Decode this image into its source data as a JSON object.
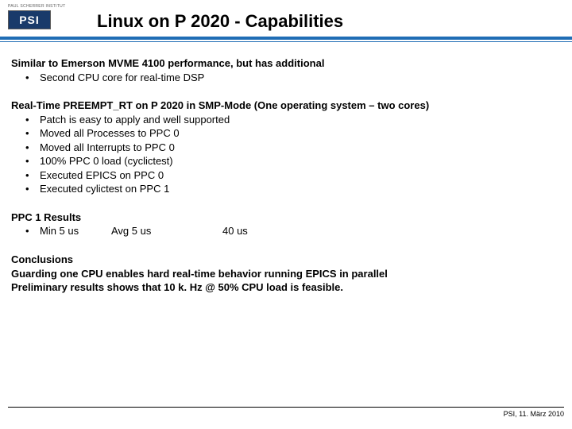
{
  "logo": {
    "topText": "PAUL SCHERRER INSTITUT",
    "blockText": "PSI"
  },
  "title": "Linux on P 2020 - Capabilities",
  "section1": {
    "heading": "Similar to Emerson MVME 4100 performance, but has additional",
    "bullets": [
      "Second CPU core for real-time DSP"
    ]
  },
  "section2": {
    "heading": "Real-Time PREEMPT_RT on P 2020 in SMP-Mode (One operating system – two cores)",
    "bullets": [
      "Patch is easy to apply and well supported",
      "Moved all Processes to PPC 0",
      "Moved all Interrupts to PPC 0",
      "100% PPC 0 load (cyclictest)",
      "Executed EPICS on PPC 0",
      "Executed cylictest on PPC 1"
    ]
  },
  "section3": {
    "heading": "PPC 1 Results",
    "min": "Min 5 us",
    "avg": "Avg 5 us",
    "max": "40 us"
  },
  "section4": {
    "heading": "Conclusions",
    "line1": "Guarding one CPU enables hard real-time behavior running EPICS in parallel",
    "line2": "Preliminary results shows that 10 k. Hz @ 50% CPU load is feasible."
  },
  "footer": "PSI, 11. März 2010",
  "bullet": "•"
}
